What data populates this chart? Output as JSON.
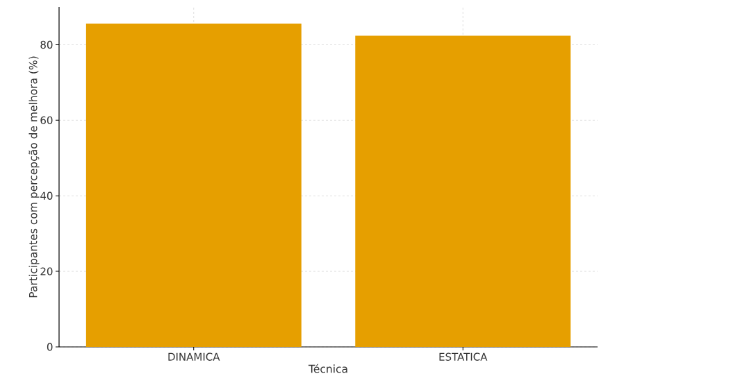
{
  "chart_data": {
    "type": "bar",
    "categories": [
      "DINAMICA",
      "ESTATICA"
    ],
    "values": [
      85.6,
      82.4
    ],
    "color": "#e69f00",
    "xlabel": "Técnica",
    "ylabel": "Participantes com percepção de melhora (%)",
    "ylim": [
      0,
      90
    ],
    "yticks": [
      0,
      20,
      40,
      60,
      80
    ],
    "grid": true
  }
}
